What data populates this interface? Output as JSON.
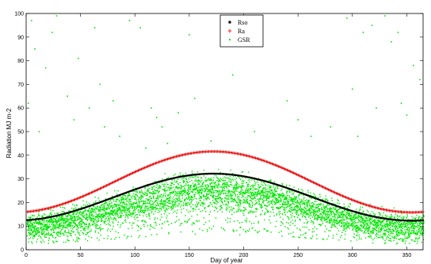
{
  "chart_data": {
    "type": "scatter",
    "xlabel": "Day of year",
    "ylabel": "Radiation MJ m-2",
    "xlim": [
      0,
      365
    ],
    "ylim": [
      0,
      100
    ],
    "xticks": [
      0,
      50,
      100,
      150,
      200,
      250,
      300,
      350
    ],
    "yticks": [
      0,
      10,
      20,
      30,
      40,
      50,
      60,
      70,
      80,
      90,
      100
    ],
    "grid": false,
    "legend_position": "top-center",
    "series": [
      {
        "name": "Rso",
        "marker": "star",
        "color": "#000000",
        "model": "sinusoid",
        "min": 12.3,
        "max": 32.2,
        "peak_day": 172
      },
      {
        "name": "Ra",
        "marker": "plus",
        "color": "#e60000",
        "model": "sinusoid",
        "min": 15.8,
        "max": 41.6,
        "peak_day": 172
      },
      {
        "name": "GSR",
        "marker": "dot",
        "color": "#00e600",
        "model": "scatter-around-Rso",
        "outliers": [
          [
            5,
            97
          ],
          [
            8,
            85
          ],
          [
            18,
            77
          ],
          [
            24,
            92
          ],
          [
            28,
            99
          ],
          [
            38,
            65
          ],
          [
            48,
            81
          ],
          [
            63,
            94
          ],
          [
            68,
            70
          ],
          [
            72,
            52
          ],
          [
            80,
            63
          ],
          [
            86,
            48
          ],
          [
            95,
            97
          ],
          [
            105,
            94
          ],
          [
            110,
            43
          ],
          [
            115,
            60
          ],
          [
            120,
            56
          ],
          [
            125,
            52
          ],
          [
            130,
            45
          ],
          [
            150,
            91
          ],
          [
            155,
            64
          ],
          [
            190,
            74
          ],
          [
            210,
            50
          ],
          [
            240,
            63
          ],
          [
            262,
            48
          ],
          [
            295,
            98
          ],
          [
            300,
            68
          ],
          [
            310,
            92
          ],
          [
            318,
            95
          ],
          [
            322,
            60
          ],
          [
            330,
            99
          ],
          [
            336,
            88
          ],
          [
            342,
            92
          ],
          [
            350,
            57
          ],
          [
            356,
            78
          ],
          [
            362,
            72
          ],
          [
            2,
            62
          ],
          [
            12,
            50
          ],
          [
            44,
            55
          ],
          [
            58,
            60
          ],
          [
            140,
            58
          ],
          [
            170,
            46
          ],
          [
            250,
            55
          ],
          [
            280,
            52
          ],
          [
            305,
            48
          ],
          [
            345,
            62
          ]
        ]
      }
    ]
  }
}
